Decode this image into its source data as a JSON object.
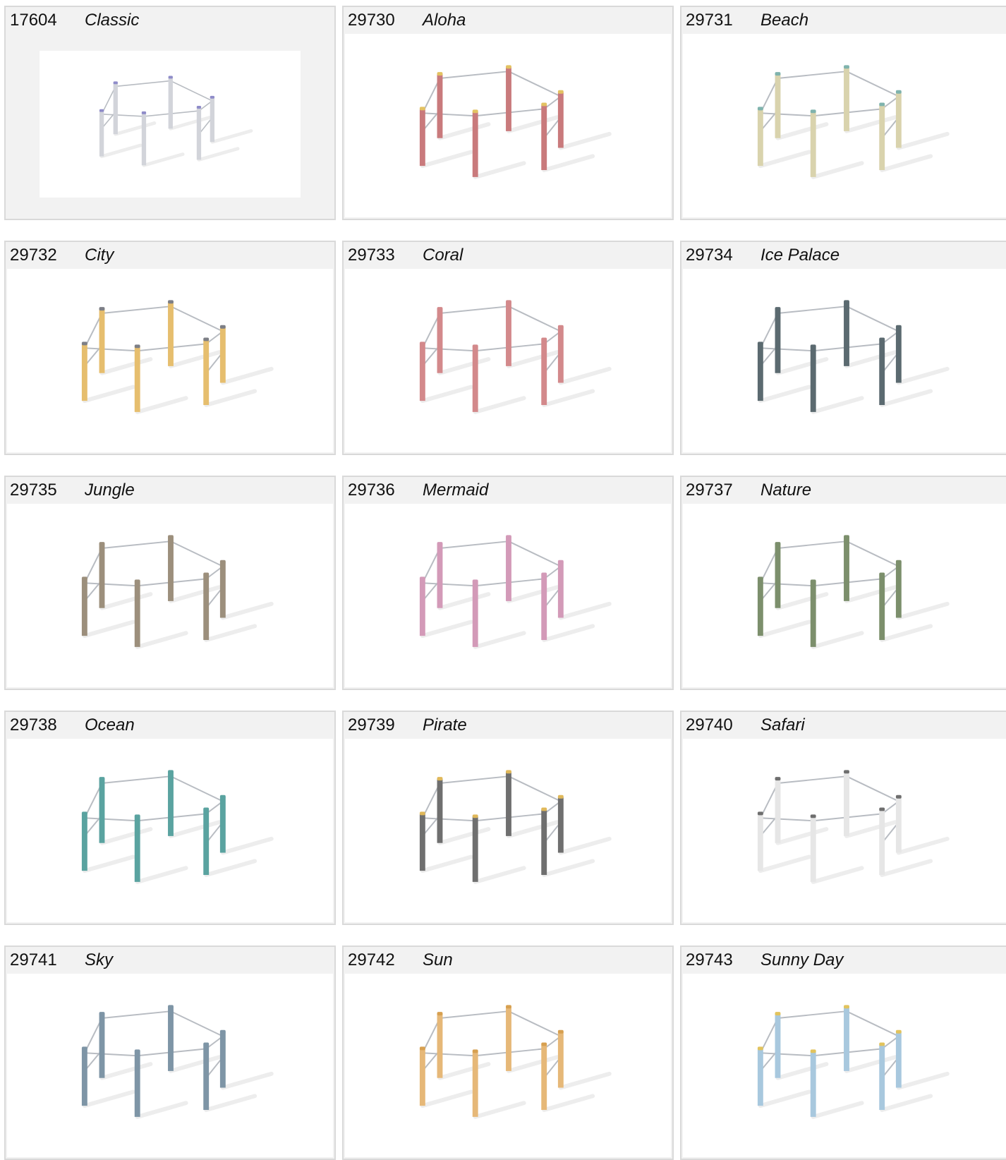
{
  "products": [
    {
      "code": "17604",
      "name": "Classic",
      "post_color": "#d2d4da",
      "cap_color": "#8f8cc9"
    },
    {
      "code": "29730",
      "name": "Aloha",
      "post_color": "#c97a7c",
      "cap_color": "#e3c262"
    },
    {
      "code": "29731",
      "name": "Beach",
      "post_color": "#d9d3ad",
      "cap_color": "#7fb3ad"
    },
    {
      "code": "29732",
      "name": "City",
      "post_color": "#e6be6e",
      "cap_color": "#7d7f86"
    },
    {
      "code": "29733",
      "name": "Coral",
      "post_color": "#d3898b",
      "cap_color": "#d3898b"
    },
    {
      "code": "29734",
      "name": "Ice Palace",
      "post_color": "#5b6a70",
      "cap_color": "#5b6a70"
    },
    {
      "code": "29735",
      "name": "Jungle",
      "post_color": "#9c8f7c",
      "cap_color": "#9c8f7c"
    },
    {
      "code": "29736",
      "name": "Mermaid",
      "post_color": "#d39ab8",
      "cap_color": "#d39ab8"
    },
    {
      "code": "29737",
      "name": "Nature",
      "post_color": "#7c8f6c",
      "cap_color": "#7c8f6c"
    },
    {
      "code": "29738",
      "name": "Ocean",
      "post_color": "#5aa3a0",
      "cap_color": "#5aa3a0"
    },
    {
      "code": "29739",
      "name": "Pirate",
      "post_color": "#6f6f6f",
      "cap_color": "#e0b85a"
    },
    {
      "code": "29740",
      "name": "Safari",
      "post_color": "#e6e6e6",
      "cap_color": "#6e6e6e"
    },
    {
      "code": "29741",
      "name": "Sky",
      "post_color": "#7e95a6",
      "cap_color": "#7e95a6"
    },
    {
      "code": "29742",
      "name": "Sun",
      "post_color": "#e6b878",
      "cap_color": "#d7a050"
    },
    {
      "code": "29743",
      "name": "Sunny Day",
      "post_color": "#a8c8de",
      "cap_color": "#e2c35d"
    }
  ]
}
